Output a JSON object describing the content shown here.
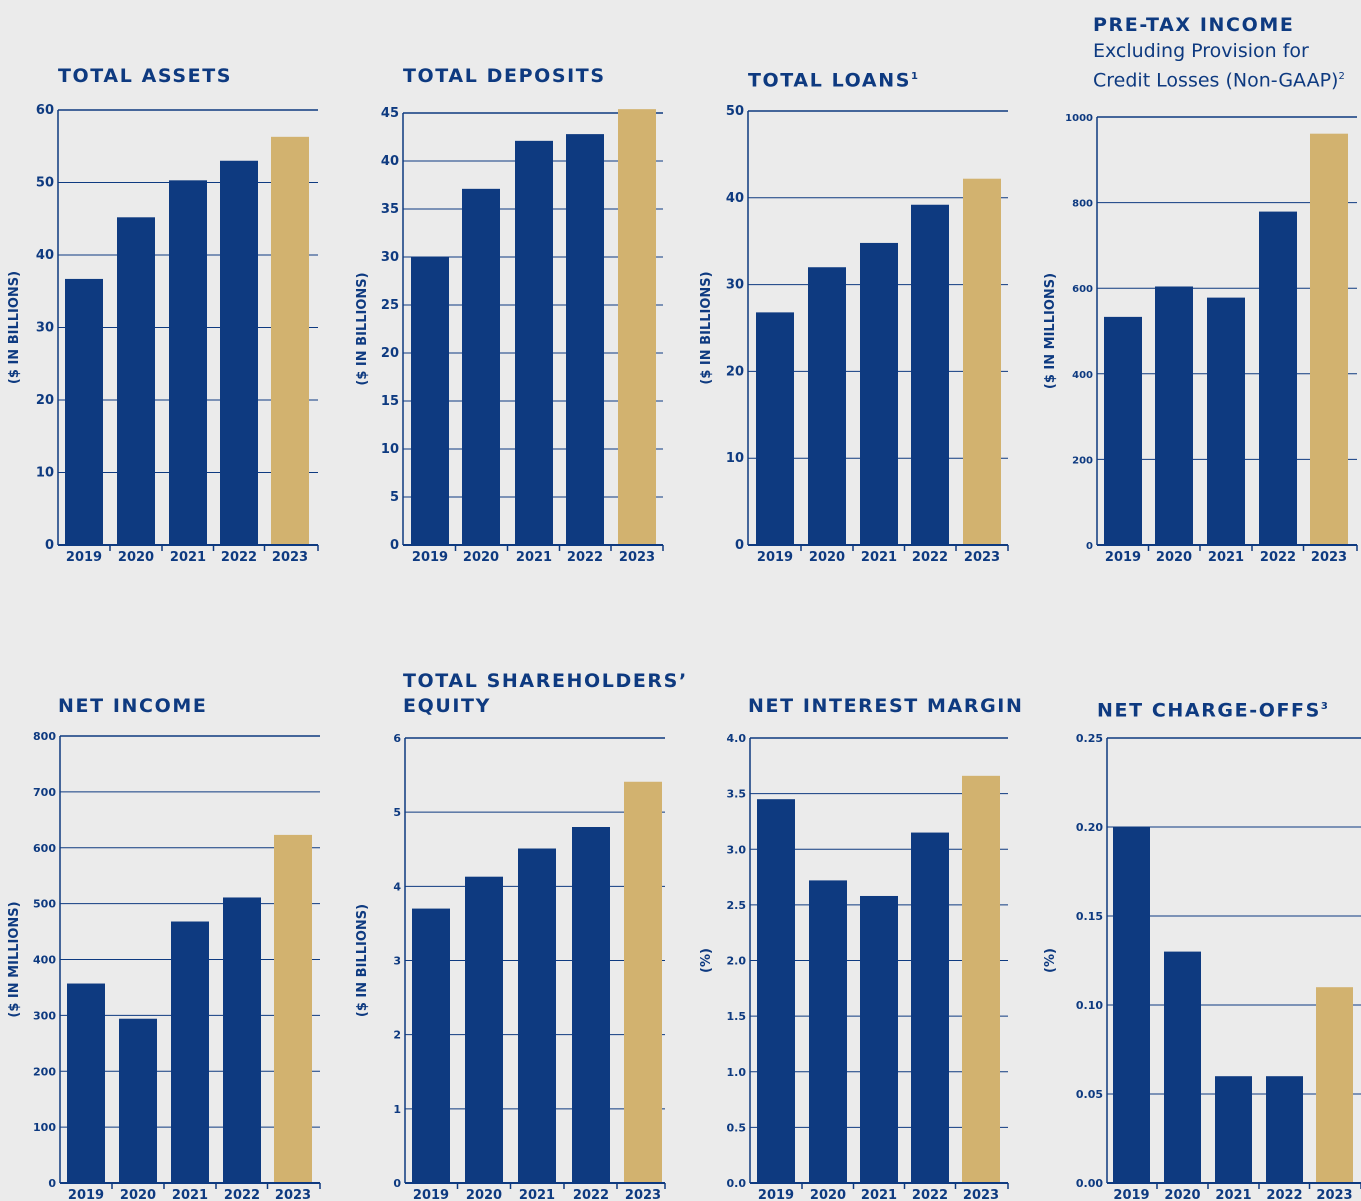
{
  "colors": {
    "background": "#ebebeb",
    "primary_bar": "#0e3a80",
    "highlight_bar": "#d2b26f",
    "text": "#0e3a80",
    "gridline": "#0e3a80"
  },
  "chart_data": [
    {
      "type": "bar",
      "title": "TOTAL ASSETS",
      "ylabel": "($ IN BILLIONS)",
      "categories": [
        "2019",
        "2020",
        "2021",
        "2022",
        "2023"
      ],
      "values": [
        36.7,
        45.2,
        50.3,
        53.0,
        56.3
      ],
      "ylim": [
        0,
        60
      ],
      "yticks": [
        "0",
        "10",
        "20",
        "30",
        "40",
        "50",
        "60"
      ],
      "grid": true,
      "highlight_category": "2023"
    },
    {
      "type": "bar",
      "title": "TOTAL DEPOSITS",
      "ylabel": "($ IN BILLIONS)",
      "categories": [
        "2019",
        "2020",
        "2021",
        "2022",
        "2023"
      ],
      "values": [
        30.0,
        37.1,
        42.1,
        42.8,
        45.4
      ],
      "ylim": [
        0,
        45
      ],
      "yticks": [
        "0",
        "5",
        "10",
        "15",
        "20",
        "25",
        "30",
        "35",
        "40",
        "45"
      ],
      "grid": true,
      "highlight_category": "2023"
    },
    {
      "type": "bar",
      "title": "TOTAL LOANS",
      "title_sup": "1",
      "ylabel": "($ IN BILLIONS)",
      "categories": [
        "2019",
        "2020",
        "2021",
        "2022",
        "2023"
      ],
      "values": [
        26.8,
        32.0,
        34.8,
        39.2,
        42.2
      ],
      "ylim": [
        0,
        50
      ],
      "yticks": [
        "0",
        "10",
        "20",
        "30",
        "40",
        "50"
      ],
      "grid": true,
      "highlight_category": "2023"
    },
    {
      "type": "bar",
      "title": "PRE-TAX INCOME",
      "subtitle": "Excluding Provision for",
      "subtitle2": "Credit Losses (Non-GAAP)",
      "subtitle_sup": "2",
      "ylabel": "($ IN MILLIONS)",
      "categories": [
        "2019",
        "2020",
        "2021",
        "2022",
        "2023"
      ],
      "values": [
        533,
        604,
        578,
        779,
        961
      ],
      "ylim": [
        0,
        1000
      ],
      "yticks": [
        "0",
        "200",
        "400",
        "600",
        "800",
        "1000"
      ],
      "grid": true,
      "highlight_category": "2023"
    },
    {
      "type": "bar",
      "title": "NET INCOME",
      "ylabel": "($ IN MILLIONS)",
      "categories": [
        "2019",
        "2020",
        "2021",
        "2022",
        "2023"
      ],
      "values": [
        357,
        294,
        468,
        511,
        623
      ],
      "ylim": [
        0,
        800
      ],
      "yticks": [
        "0",
        "100",
        "200",
        "300",
        "400",
        "500",
        "600",
        "700",
        "800"
      ],
      "grid": true,
      "highlight_category": "2023"
    },
    {
      "type": "bar",
      "title": "TOTAL SHAREHOLDERS’",
      "title2": "EQUITY",
      "ylabel": "($ IN BILLIONS)",
      "categories": [
        "2019",
        "2020",
        "2021",
        "2022",
        "2023"
      ],
      "values": [
        3.7,
        4.13,
        4.51,
        4.8,
        5.41
      ],
      "ylim": [
        0,
        6
      ],
      "yticks": [
        "0",
        "1",
        "2",
        "3",
        "4",
        "5",
        "6"
      ],
      "grid": true,
      "highlight_category": "2023"
    },
    {
      "type": "bar",
      "title": "NET INTEREST MARGIN",
      "ylabel": "(%)",
      "categories": [
        "2019",
        "2020",
        "2021",
        "2022",
        "2023"
      ],
      "values": [
        3.45,
        2.72,
        2.58,
        3.15,
        3.66
      ],
      "ylim": [
        0,
        4
      ],
      "yticks": [
        "0.0",
        "0.5",
        "1.0",
        "1.5",
        "2.0",
        "2.5",
        "3.0",
        "3.5",
        "4.0"
      ],
      "grid": true,
      "highlight_category": "2023"
    },
    {
      "type": "bar",
      "title": "NET CHARGE-OFFS",
      "title_sup": "3",
      "ylabel": "(%)",
      "categories": [
        "2019",
        "2020",
        "2021",
        "2022",
        "2023"
      ],
      "values": [
        0.2,
        0.13,
        0.06,
        0.06,
        0.11
      ],
      "ylim": [
        0,
        0.25
      ],
      "yticks": [
        "0.00",
        "0.05",
        "0.10",
        "0.15",
        "0.20",
        "0.25"
      ],
      "grid": true,
      "highlight_category": "2023"
    }
  ]
}
